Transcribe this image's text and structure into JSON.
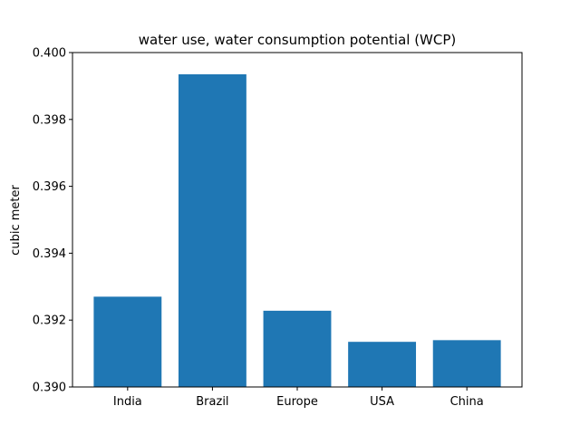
{
  "chart_data": {
    "type": "bar",
    "title": "water use, water consumption potential (WCP)",
    "xlabel": "",
    "ylabel": "cubic meter",
    "categories": [
      "India",
      "Brazil",
      "Europe",
      "USA",
      "China"
    ],
    "values": [
      0.3927,
      0.39935,
      0.39228,
      0.39135,
      0.3914
    ],
    "ylim": [
      0.39,
      0.4
    ],
    "yticks": [
      "0.390",
      "0.392",
      "0.394",
      "0.396",
      "0.398",
      "0.400"
    ],
    "grid": false,
    "bar_color": "#1f77b4"
  }
}
